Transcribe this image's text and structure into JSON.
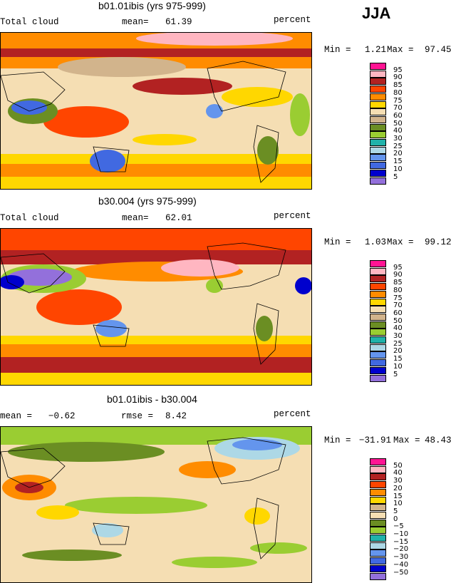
{
  "season": "JJA",
  "chart_data": [
    {
      "type": "heatmap",
      "title": "b01.01ibis (yrs 975-999)",
      "field": "Total cloud",
      "mean_label": "mean=",
      "mean": "61.39",
      "units": "percent",
      "min_label": "Min =",
      "min": "1.21",
      "max_label": "Max =",
      "max": "97.45",
      "levels": [
        "95",
        "90",
        "85",
        "80",
        "75",
        "70",
        "60",
        "50",
        "40",
        "30",
        "25",
        "20",
        "15",
        "10",
        "5"
      ],
      "colors": [
        "#ff1493",
        "#ffb6c1",
        "#b22222",
        "#ff4500",
        "#ff8c00",
        "#ffd700",
        "#f5deb3",
        "#d2b48c",
        "#6b8e23",
        "#9acd32",
        "#20b2aa",
        "#add8e6",
        "#6495ed",
        "#4169e1",
        "#0000cd",
        "#9370db"
      ]
    },
    {
      "type": "heatmap",
      "title": "b30.004 (yrs 975-999)",
      "field": "Total cloud",
      "mean_label": "mean=",
      "mean": "62.01",
      "units": "percent",
      "min_label": "Min =",
      "min": "1.03",
      "max_label": "Max =",
      "max": "99.12",
      "levels": [
        "95",
        "90",
        "85",
        "80",
        "75",
        "70",
        "60",
        "50",
        "40",
        "30",
        "25",
        "20",
        "15",
        "10",
        "5"
      ],
      "colors": [
        "#ff1493",
        "#ffb6c1",
        "#b22222",
        "#ff4500",
        "#ff8c00",
        "#ffd700",
        "#f5deb3",
        "#d2b48c",
        "#6b8e23",
        "#9acd32",
        "#20b2aa",
        "#add8e6",
        "#6495ed",
        "#4169e1",
        "#0000cd",
        "#9370db"
      ]
    },
    {
      "type": "heatmap",
      "title": "b01.01ibis - b30.004",
      "mean_label": "mean =",
      "mean": "−0.62",
      "rmse_label": "rmse =",
      "rmse": "8.42",
      "units": "percent",
      "min_label": "Min =",
      "min": "−31.91",
      "max_label": "Max =",
      "max": "48.43",
      "levels": [
        "50",
        "40",
        "30",
        "20",
        "15",
        "10",
        "5",
        "0",
        "−5",
        "−10",
        "−15",
        "−20",
        "−30",
        "−40",
        "−50"
      ],
      "colors": [
        "#ff1493",
        "#ffb6c1",
        "#b22222",
        "#ff4500",
        "#ff8c00",
        "#ffd700",
        "#d2b48c",
        "#f5deb3",
        "#6b8e23",
        "#9acd32",
        "#20b2aa",
        "#add8e6",
        "#6495ed",
        "#4169e1",
        "#0000cd",
        "#9370db"
      ]
    }
  ]
}
